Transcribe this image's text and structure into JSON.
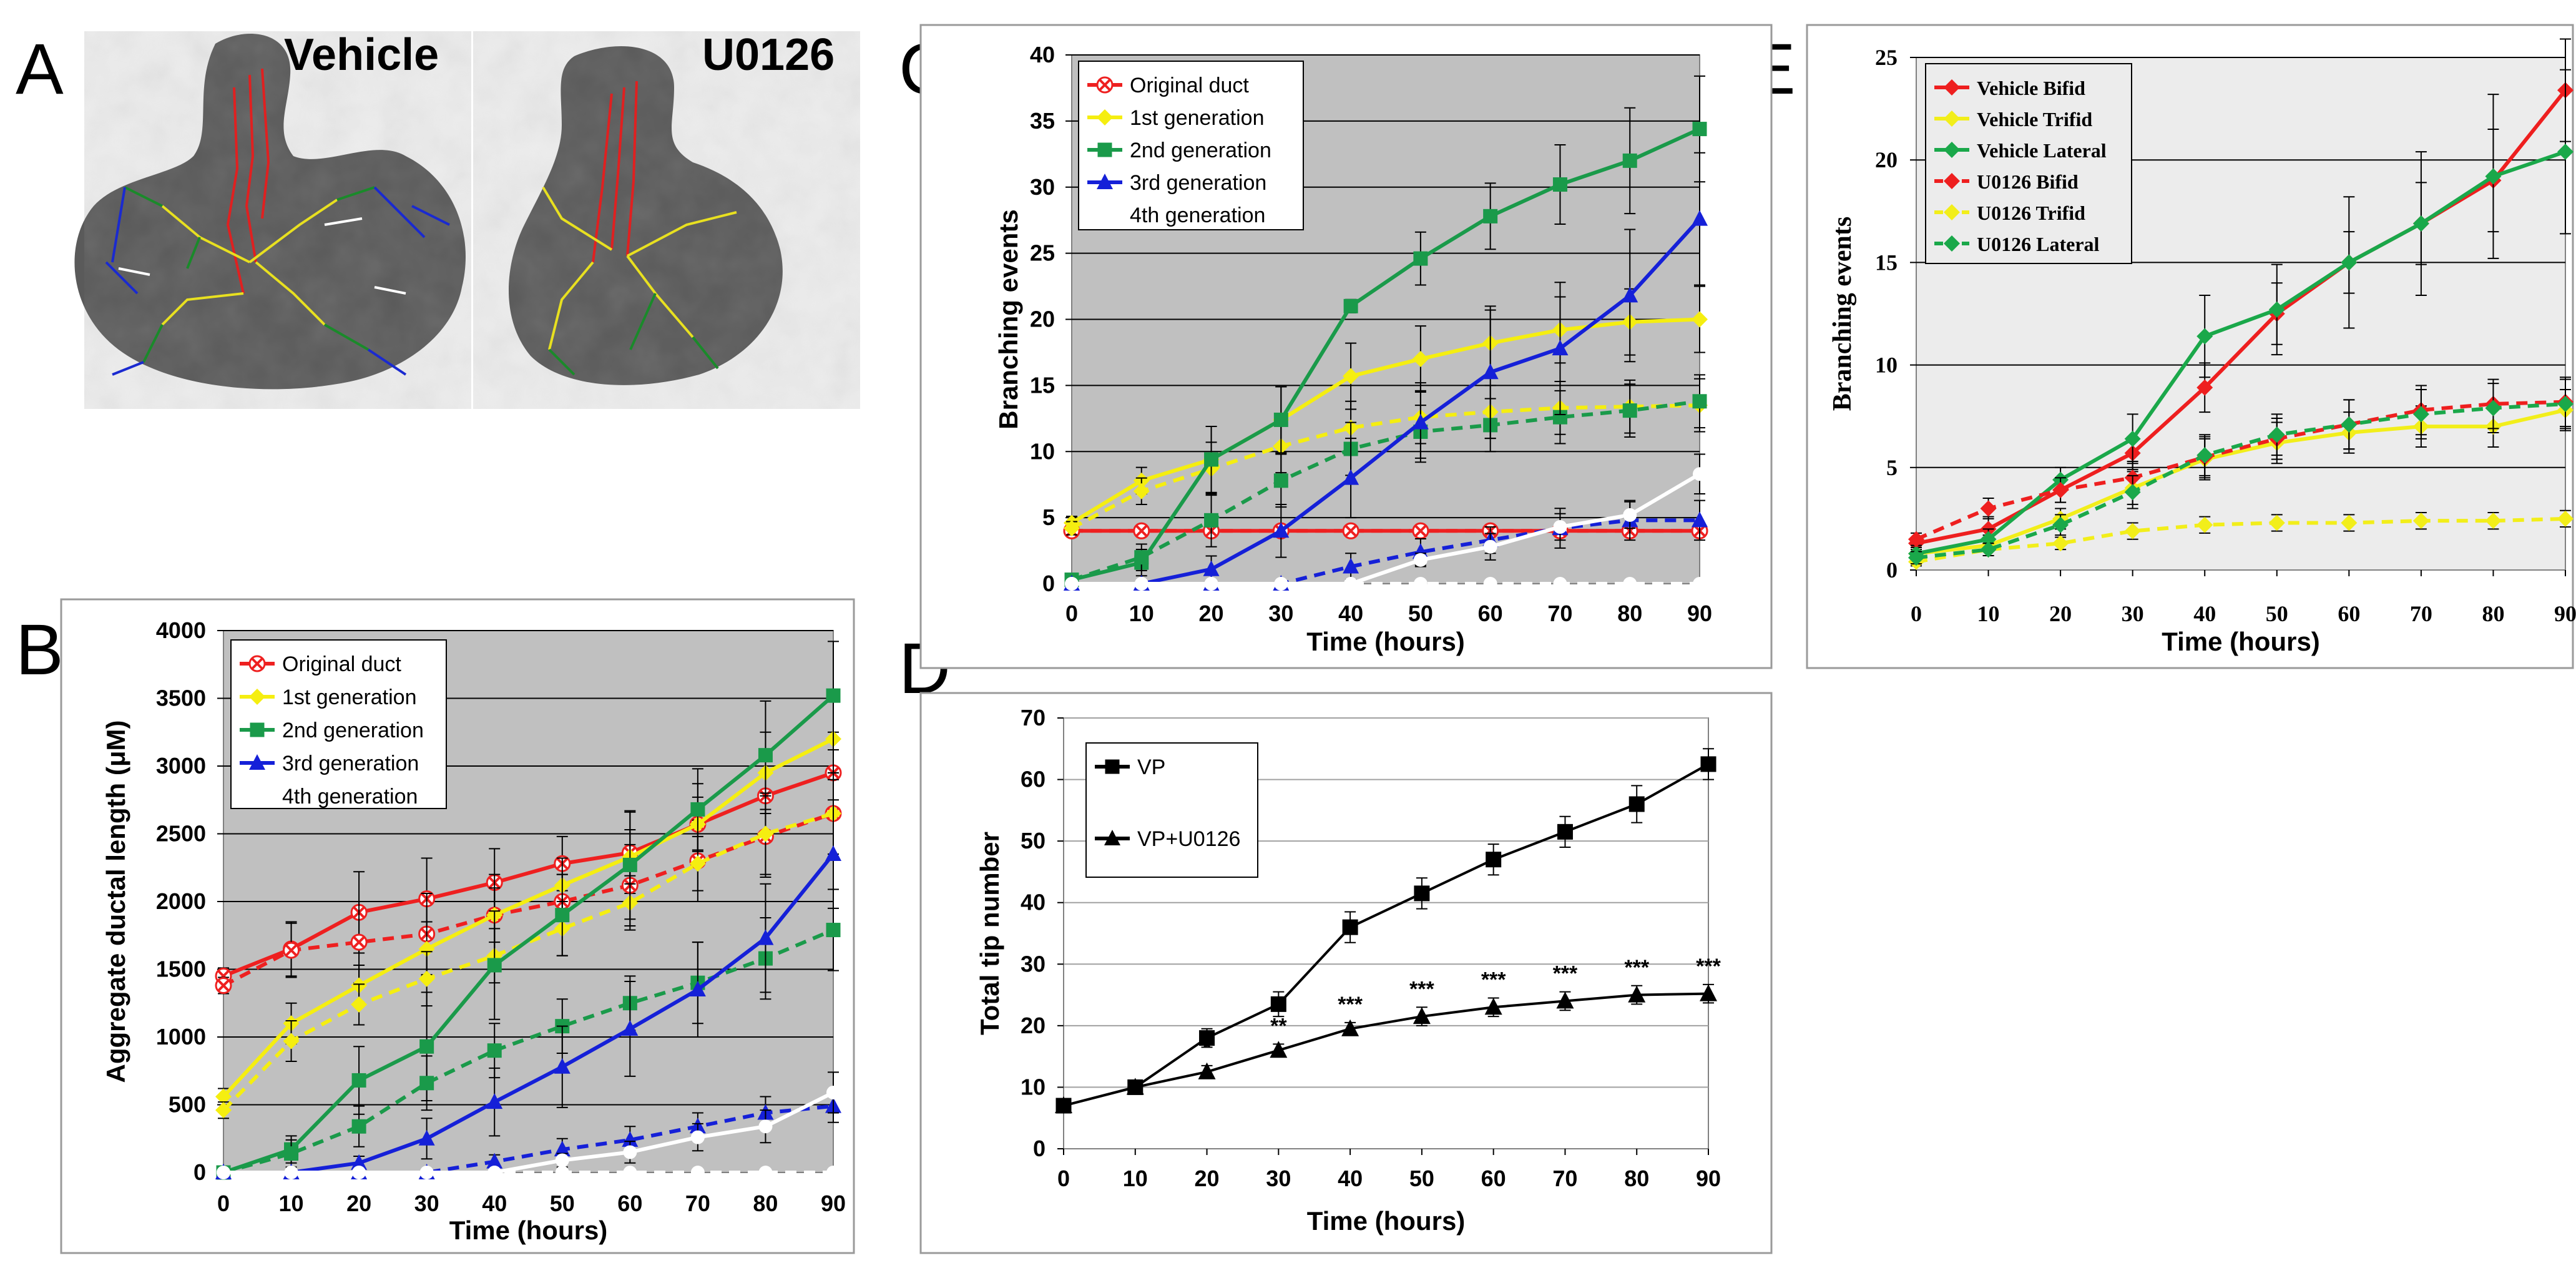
{
  "panels": {
    "A": {
      "label": "A",
      "images": [
        {
          "label": "Vehicle"
        },
        {
          "label": "U0126"
        }
      ],
      "trace_colors": {
        "original_duct": "#e02020",
        "first_gen": "#e8e020",
        "second_gen": "#1a8a2a",
        "third_gen": "#1a2ad0",
        "fourth_gen": "#ffffff"
      }
    }
  },
  "chart_data": [
    {
      "panel": "B",
      "type": "line",
      "xlabel": "Time (hours)",
      "ylabel": "Aggregate ductal length (μM)",
      "x": [
        0,
        10,
        20,
        30,
        40,
        50,
        60,
        70,
        80,
        90
      ],
      "xlim": [
        0,
        90
      ],
      "ylim": [
        0,
        4000
      ],
      "yticks": [
        0,
        500,
        1000,
        1500,
        2000,
        2500,
        3000,
        3500,
        4000
      ],
      "grid": true,
      "background": "#c0c0c0",
      "legend": "top-left",
      "legend_entries": [
        "Original duct",
        "1st generation",
        "2nd generation",
        "3rd generation",
        "4th generation"
      ],
      "series": [
        {
          "name": "Original duct",
          "group": "Vehicle",
          "style": "solid",
          "color": "#ee2020",
          "marker": "x",
          "values": [
            1450,
            1650,
            1920,
            2020,
            2140,
            2280,
            2360,
            2570,
            2780,
            2950
          ],
          "err": [
            60,
            200,
            300,
            300,
            250,
            200,
            300,
            300,
            300,
            300
          ]
        },
        {
          "name": "Original duct",
          "group": "U0126",
          "style": "dashed",
          "color": "#ee2020",
          "marker": "x",
          "values": [
            1380,
            1640,
            1700,
            1760,
            1900,
            2000,
            2120,
            2300,
            2480,
            2650
          ],
          "err": [
            60,
            200,
            300,
            300,
            300,
            200,
            300,
            300,
            300,
            300
          ]
        },
        {
          "name": "1st generation",
          "group": "Vehicle",
          "style": "solid",
          "color": "#f5ee10",
          "marker": "diamond",
          "values": [
            560,
            1100,
            1380,
            1650,
            1900,
            2120,
            2330,
            2570,
            2950,
            3200
          ],
          "err": [
            60,
            150,
            150,
            200,
            200,
            200,
            200,
            200,
            300,
            300
          ]
        },
        {
          "name": "1st generation",
          "group": "U0126",
          "style": "dashed",
          "color": "#f5ee10",
          "marker": "diamond",
          "values": [
            460,
            970,
            1240,
            1430,
            1600,
            1800,
            1990,
            2280,
            2500,
            2650
          ],
          "err": [
            60,
            150,
            150,
            200,
            200,
            200,
            200,
            200,
            300,
            300
          ]
        },
        {
          "name": "2nd generation",
          "group": "Vehicle",
          "style": "solid",
          "color": "#1a9a4a",
          "marker": "square",
          "values": [
            0,
            170,
            680,
            930,
            1530,
            1900,
            2270,
            2680,
            3080,
            3520
          ],
          "err": [
            0,
            100,
            250,
            400,
            400,
            300,
            400,
            300,
            400,
            400
          ]
        },
        {
          "name": "2nd generation",
          "group": "U0126",
          "style": "dashed",
          "color": "#1a9a4a",
          "marker": "square",
          "values": [
            0,
            140,
            340,
            660,
            900,
            1080,
            1250,
            1400,
            1580,
            1790
          ],
          "err": [
            0,
            100,
            150,
            200,
            200,
            200,
            200,
            300,
            300,
            300
          ]
        },
        {
          "name": "3rd generation",
          "group": "Vehicle",
          "style": "solid",
          "color": "#1520d8",
          "marker": "triangle",
          "values": [
            0,
            0,
            70,
            250,
            520,
            780,
            1060,
            1350,
            1730,
            2350
          ],
          "err": [
            0,
            0,
            50,
            150,
            250,
            300,
            350,
            350,
            400,
            400
          ]
        },
        {
          "name": "3rd generation",
          "group": "U0126",
          "style": "dashed",
          "color": "#1520d8",
          "marker": "triangle",
          "values": [
            0,
            0,
            0,
            0,
            80,
            170,
            240,
            340,
            440,
            490
          ],
          "err": [
            0,
            0,
            0,
            0,
            50,
            80,
            100,
            100,
            120,
            120
          ]
        },
        {
          "name": "4th generation",
          "group": "Vehicle",
          "style": "solid",
          "color": "#ffffff",
          "marker": "circle",
          "values": [
            0,
            0,
            0,
            0,
            0,
            90,
            150,
            260,
            340,
            590
          ],
          "err": [
            0,
            0,
            0,
            0,
            0,
            50,
            80,
            100,
            120,
            150
          ]
        },
        {
          "name": "4th generation",
          "group": "U0126",
          "style": "dashed",
          "color": "#ffffff",
          "marker": "circle",
          "values": [
            0,
            0,
            0,
            0,
            0,
            0,
            0,
            0,
            0,
            0
          ],
          "err": [
            0,
            0,
            0,
            0,
            0,
            0,
            0,
            0,
            0,
            0
          ]
        }
      ]
    },
    {
      "panel": "C",
      "type": "line",
      "xlabel": "Time (hours)",
      "ylabel": "Branching events",
      "x": [
        0,
        10,
        20,
        30,
        40,
        50,
        60,
        70,
        80,
        90
      ],
      "xlim": [
        0,
        90
      ],
      "ylim": [
        0,
        40
      ],
      "yticks": [
        0,
        5,
        10,
        15,
        20,
        25,
        30,
        35,
        40
      ],
      "grid": true,
      "background": "#c0c0c0",
      "legend": "top-left",
      "legend_entries": [
        "Original duct",
        "1st generation",
        "2nd generation",
        "3rd generation",
        "4th generation"
      ],
      "series": [
        {
          "name": "Original duct",
          "group": "Vehicle",
          "style": "solid",
          "color": "#ee2020",
          "marker": "x",
          "values": [
            4,
            4,
            4,
            4,
            4,
            4,
            4,
            4,
            4,
            4
          ],
          "err": [
            0,
            0,
            0,
            0,
            0,
            0,
            0,
            0,
            0,
            0
          ]
        },
        {
          "name": "Original duct",
          "group": "U0126",
          "style": "dashed",
          "color": "#ee2020",
          "marker": "x",
          "values": [
            4,
            4,
            4,
            4,
            4,
            4,
            4,
            4,
            4,
            4
          ],
          "err": [
            0,
            0,
            0,
            0,
            0,
            0,
            0,
            0,
            0,
            0
          ]
        },
        {
          "name": "1st generation",
          "group": "Vehicle",
          "style": "solid",
          "color": "#f5ee10",
          "marker": "diamond",
          "values": [
            4.6,
            7.8,
            9.4,
            12.4,
            15.7,
            17.0,
            18.2,
            19.2,
            19.8,
            20.0
          ],
          "err": [
            0.5,
            1,
            2.5,
            2.5,
            2.5,
            2.5,
            2.5,
            2.5,
            2.5,
            2.5
          ]
        },
        {
          "name": "1st generation",
          "group": "U0126",
          "style": "dashed",
          "color": "#f5ee10",
          "marker": "diamond",
          "values": [
            4.2,
            7.0,
            8.7,
            10.4,
            11.8,
            12.6,
            13.0,
            13.3,
            13.4,
            13.5
          ],
          "err": [
            0.5,
            1,
            2,
            2,
            2,
            2,
            2,
            2,
            2,
            2
          ]
        },
        {
          "name": "2nd generation",
          "group": "Vehicle",
          "style": "solid",
          "color": "#1a9a4a",
          "marker": "square",
          "values": [
            0.3,
            1.6,
            9.4,
            12.4,
            21.0,
            24.6,
            27.8,
            30.2,
            32.0,
            34.4
          ],
          "err": [
            0.2,
            1,
            2.5,
            2.5,
            0.5,
            2,
            2.5,
            3,
            4,
            4
          ]
        },
        {
          "name": "2nd generation",
          "group": "U0126",
          "style": "dashed",
          "color": "#1a9a4a",
          "marker": "square",
          "values": [
            0.3,
            2.0,
            4.8,
            7.8,
            10.2,
            11.5,
            12.0,
            12.6,
            13.1,
            13.8
          ],
          "err": [
            0.2,
            1,
            2,
            2,
            2,
            2,
            2,
            2,
            2,
            2
          ]
        },
        {
          "name": "3rd generation",
          "group": "Vehicle",
          "style": "solid",
          "color": "#1520d8",
          "marker": "triangle",
          "values": [
            0,
            0,
            1.1,
            4.0,
            8.0,
            12.2,
            16.0,
            17.8,
            21.8,
            27.6
          ],
          "err": [
            0,
            0,
            1,
            2,
            3,
            3,
            5,
            5,
            5,
            5
          ]
        },
        {
          "name": "3rd generation",
          "group": "U0126",
          "style": "dashed",
          "color": "#1520d8",
          "marker": "triangle",
          "values": [
            0,
            0,
            0,
            0,
            1.3,
            2.4,
            3.3,
            4.2,
            4.8,
            4.8
          ],
          "err": [
            0,
            0,
            0,
            0,
            1,
            1,
            1,
            1.5,
            1.5,
            1.5
          ]
        },
        {
          "name": "4th generation",
          "group": "Vehicle",
          "style": "solid",
          "color": "#ffffff",
          "marker": "circle",
          "values": [
            0,
            0,
            0,
            0,
            0,
            1.8,
            2.8,
            4.3,
            5.2,
            8.3
          ],
          "err": [
            0,
            0,
            0,
            0,
            0,
            0.5,
            1,
            1,
            1,
            1.5
          ]
        },
        {
          "name": "4th generation",
          "group": "U0126",
          "style": "dashed",
          "color": "#ffffff",
          "marker": "circle",
          "values": [
            0,
            0,
            0,
            0,
            0,
            0,
            0,
            0,
            0,
            0
          ],
          "err": [
            0,
            0,
            0,
            0,
            0,
            0,
            0,
            0,
            0,
            0
          ]
        }
      ]
    },
    {
      "panel": "D",
      "type": "line",
      "xlabel": "Time (hours)",
      "ylabel": "Total tip number",
      "x": [
        0,
        10,
        20,
        30,
        40,
        50,
        60,
        70,
        80,
        90
      ],
      "xlim": [
        0,
        90
      ],
      "ylim": [
        0,
        70
      ],
      "yticks": [
        0,
        10,
        20,
        30,
        40,
        50,
        60,
        70
      ],
      "grid": true,
      "background": "#ffffff",
      "legend": "top-left",
      "legend_entries": [
        "VP",
        "VP+U0126"
      ],
      "series": [
        {
          "name": "VP",
          "style": "solid",
          "color": "#000000",
          "marker": "square",
          "values": [
            7,
            10,
            18,
            23.5,
            36,
            41.5,
            47,
            51.5,
            56,
            62.5
          ],
          "err": [
            0.5,
            0.5,
            1.5,
            2,
            2.5,
            2.5,
            2.5,
            2.5,
            3,
            2.5
          ]
        },
        {
          "name": "VP+U0126",
          "style": "solid",
          "color": "#000000",
          "marker": "triangle",
          "values": [
            7,
            10,
            12.5,
            16,
            19.5,
            21.5,
            23,
            24,
            25,
            25.2
          ],
          "err": [
            0.5,
            0.5,
            1,
            1,
            1,
            1.5,
            1.5,
            1.5,
            1.5,
            1.5
          ]
        }
      ],
      "annotations": [
        {
          "x": 20,
          "text": "*"
        },
        {
          "x": 30,
          "text": "**"
        },
        {
          "x": 40,
          "text": "***"
        },
        {
          "x": 50,
          "text": "***"
        },
        {
          "x": 60,
          "text": "***"
        },
        {
          "x": 70,
          "text": "***"
        },
        {
          "x": 80,
          "text": "***"
        },
        {
          "x": 90,
          "text": "***"
        }
      ]
    },
    {
      "panel": "E",
      "type": "line",
      "xlabel": "Time (hours)",
      "ylabel": "Branching events",
      "x": [
        0,
        10,
        20,
        30,
        40,
        50,
        60,
        70,
        80,
        90
      ],
      "xlim": [
        0,
        90
      ],
      "ylim": [
        0,
        25
      ],
      "yticks": [
        0,
        5,
        10,
        15,
        20,
        25
      ],
      "grid": true,
      "background": "#ececec",
      "legend": "top-left",
      "legend_entries": [
        "Vehicle Bifid",
        "Vehicle Trifid",
        "Vehicle Lateral",
        "U0126 Bifid",
        "U0126 Trifid",
        "U0126 Lateral"
      ],
      "series": [
        {
          "name": "Vehicle Bifid",
          "style": "solid",
          "color": "#ee1f1f",
          "marker": "diamond",
          "values": [
            1.3,
            2.0,
            3.9,
            5.7,
            8.9,
            12.5,
            15.0,
            16.9,
            19.0,
            23.4
          ],
          "err": [
            0.3,
            0.6,
            0.6,
            0.8,
            1.2,
            1.5,
            1.5,
            2,
            2.5,
            2.5
          ]
        },
        {
          "name": "Vehicle Trifid",
          "style": "solid",
          "color": "#f2ee1a",
          "marker": "diamond",
          "values": [
            0.8,
            1.2,
            2.5,
            4.0,
            5.4,
            6.2,
            6.7,
            7.0,
            7.0,
            7.8
          ],
          "err": [
            0.3,
            0.5,
            0.5,
            0.8,
            1,
            1,
            1,
            1,
            1,
            1
          ]
        },
        {
          "name": "Vehicle Lateral",
          "style": "solid",
          "color": "#1aa84a",
          "marker": "diamond",
          "values": [
            0.8,
            1.5,
            4.4,
            6.4,
            11.4,
            12.7,
            15.0,
            16.9,
            19.2,
            20.4
          ],
          "err": [
            0.3,
            0.5,
            0.6,
            1.2,
            2,
            2.2,
            3.2,
            3.5,
            4,
            4
          ]
        },
        {
          "name": "U0126 Bifid",
          "style": "dashed",
          "color": "#ee1f1f",
          "marker": "diamond",
          "values": [
            1.5,
            3.0,
            3.9,
            4.5,
            5.5,
            6.4,
            7.1,
            7.8,
            8.1,
            8.2
          ],
          "err": [
            0.3,
            0.5,
            0.6,
            0.8,
            1,
            1,
            1.2,
            1.2,
            1.2,
            1.2
          ]
        },
        {
          "name": "U0126 Trifid",
          "style": "dashed",
          "color": "#f2ee1a",
          "marker": "diamond",
          "values": [
            0.4,
            1.0,
            1.3,
            1.9,
            2.2,
            2.3,
            2.3,
            2.4,
            2.4,
            2.5
          ],
          "err": [
            0.2,
            0.3,
            0.3,
            0.4,
            0.4,
            0.4,
            0.4,
            0.4,
            0.4,
            0.4
          ]
        },
        {
          "name": "U0126 Lateral",
          "style": "dashed",
          "color": "#1aa84a",
          "marker": "diamond",
          "values": [
            0.6,
            1.0,
            2.2,
            3.8,
            5.6,
            6.6,
            7.1,
            7.6,
            7.9,
            8.1
          ],
          "err": [
            0.3,
            0.3,
            0.5,
            0.8,
            1,
            1,
            1.2,
            1.2,
            1.2,
            1.2
          ]
        }
      ]
    }
  ]
}
